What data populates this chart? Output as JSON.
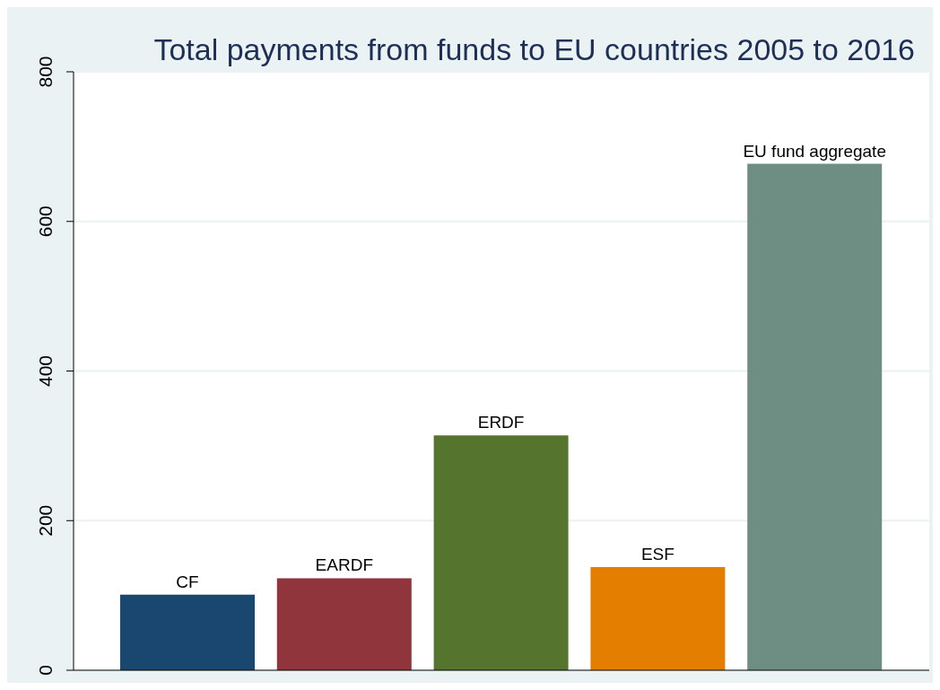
{
  "chart_data": {
    "type": "bar",
    "title": "Total payments from funds to EU countries 2005 to 2016",
    "categories": [
      "CF",
      "EARDF",
      "ERDF",
      "ESF",
      "EU fund aggregate"
    ],
    "values": [
      101,
      123,
      314,
      138,
      677
    ],
    "colors": [
      "#1a476f",
      "#90353b",
      "#55752f",
      "#e37e00",
      "#6e8e84"
    ],
    "ylim": [
      0,
      800
    ],
    "yticks": [
      0,
      200,
      400,
      600,
      800
    ],
    "grid": "y",
    "tick_labels": "y"
  }
}
